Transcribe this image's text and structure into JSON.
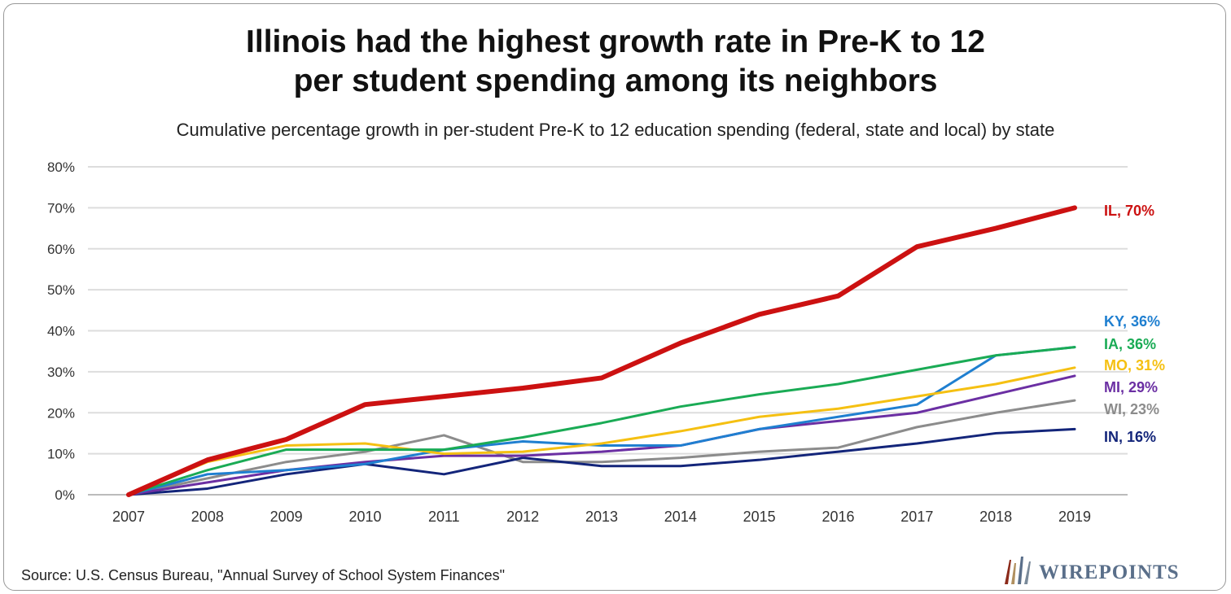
{
  "chart_data": {
    "type": "line",
    "title": "Illinois had the highest growth rate in Pre-K to 12 per student spending among its neighbors",
    "title_lines": [
      "Illinois had the highest growth rate in Pre-K to 12",
      "per student spending among its neighbors"
    ],
    "subtitle": "Cumulative percentage growth in per-student Pre-K to 12 education spending (federal, state and local) by state",
    "xlabel": "",
    "ylabel": "",
    "x": [
      "2007",
      "2008",
      "2009",
      "2010",
      "2011",
      "2012",
      "2013",
      "2014",
      "2015",
      "2016",
      "2017",
      "2018",
      "2019"
    ],
    "ylim": [
      0,
      80
    ],
    "yticks": [
      0,
      10,
      20,
      30,
      40,
      50,
      60,
      70,
      80
    ],
    "ytick_labels": [
      "0%",
      "10%",
      "20%",
      "30%",
      "40%",
      "50%",
      "60%",
      "70%",
      "80%"
    ],
    "grid": true,
    "legend": "end-of-line labels",
    "series": [
      {
        "name": "WI",
        "label": "WI, 23%",
        "color": "#8c8c8c",
        "width": 3,
        "values": [
          0,
          4,
          8,
          10.5,
          14.5,
          8,
          8,
          9,
          10.5,
          11.5,
          16.5,
          20,
          23
        ]
      },
      {
        "name": "IN",
        "label": "IN, 16%",
        "color": "#13257a",
        "width": 3,
        "values": [
          0,
          1.5,
          5,
          7.5,
          5,
          9,
          7,
          7,
          8.5,
          10.5,
          12.5,
          15,
          16
        ]
      },
      {
        "name": "MI",
        "label": "MI, 29%",
        "color": "#6b2fa3",
        "width": 3,
        "values": [
          0,
          3,
          6,
          8,
          9.5,
          9.5,
          10.5,
          12,
          16,
          18,
          20,
          24.5,
          29
        ]
      },
      {
        "name": "KY",
        "label": "KY, 36%",
        "color": "#1f7fd0",
        "width": 3,
        "values": [
          0,
          5,
          6,
          7.5,
          11,
          13,
          12,
          12,
          16,
          19,
          22,
          34,
          36
        ]
      },
      {
        "name": "MO",
        "label": "MO, 31%",
        "color": "#f5c012",
        "width": 3,
        "values": [
          0,
          8,
          12,
          12.5,
          10,
          10.5,
          12.5,
          15.5,
          19,
          21,
          24,
          27,
          31
        ]
      },
      {
        "name": "IA",
        "label": "IA, 36%",
        "color": "#1aab55",
        "width": 3,
        "values": [
          0,
          6,
          11,
          11,
          11,
          14,
          17.5,
          21.5,
          24.5,
          27,
          30.5,
          34,
          36
        ]
      },
      {
        "name": "IL",
        "label": "IL, 70%",
        "color": "#cc1111",
        "width": 6,
        "values": [
          0,
          8.5,
          13.5,
          22,
          24,
          26,
          28.5,
          37,
          44,
          48.5,
          60.5,
          65,
          70
        ]
      }
    ],
    "label_order": [
      "IL",
      "KY",
      "IA",
      "MO",
      "MI",
      "WI",
      "IN"
    ],
    "source": "Source: U.S. Census Bureau, \"Annual Survey of School System Finances\"",
    "logo_text": "WIREPOINTS"
  }
}
